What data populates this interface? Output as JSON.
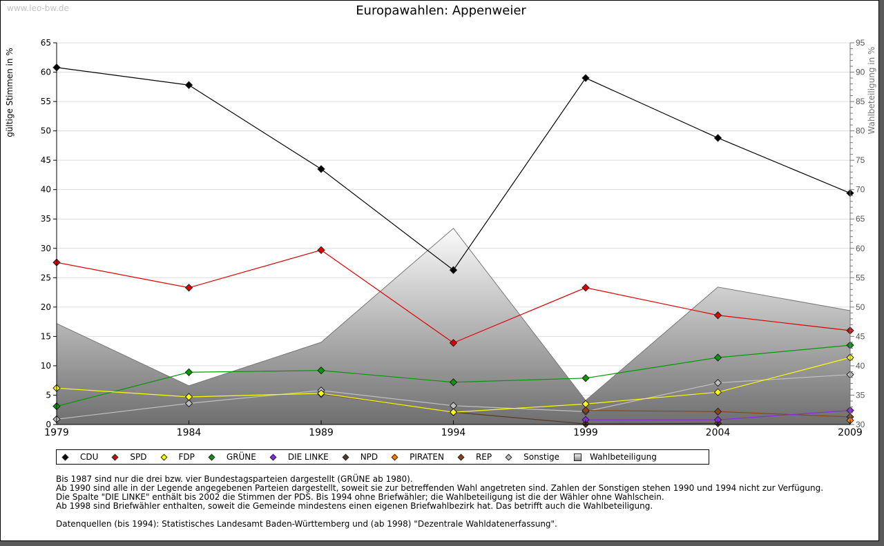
{
  "watermark": "www.leo-bw.de",
  "legend": [
    {
      "label": "CDU",
      "color": "#000000"
    },
    {
      "label": "SPD",
      "color": "#e00000"
    },
    {
      "label": "FDP",
      "color": "#ffff00"
    },
    {
      "label": "GRÜNE",
      "color": "#009900"
    },
    {
      "label": "DIE LINKE",
      "color": "#8a2be2"
    },
    {
      "label": "NPD",
      "color": "#5a3a24"
    },
    {
      "label": "PIRATEN",
      "color": "#ff8000"
    },
    {
      "label": "REP",
      "color": "#8b4513"
    },
    {
      "label": "Sonstige",
      "color": "#c0c0c0"
    },
    {
      "label": "Wahlbeteiligung",
      "color": "#a0a0a0"
    }
  ],
  "notes": [
    "Bis 1987 sind nur die drei bzw. vier Bundestagsparteien dargestellt (GRÜNE ab 1980).",
    "Ab 1990 sind alle in der Legende angegebenen Parteien dargestellt, soweit sie zur betreffenden Wahl angetreten sind. Zahlen der Sonstigen stehen 1990 und 1994 nicht zur Verfügung.",
    "Die Spalte \"DIE LINKE\" enthält bis 2002 die Stimmen der PDS. Bis 1994 ohne Briefwähler; die Wahlbeteiligung ist die der Wähler ohne Wahlschein.",
    "Ab 1998 sind Briefwähler enthalten, soweit die Gemeinde mindestens einen eigenen Briefwahlbezirk hat. Das betrifft auch die Wahlbeteiligung.",
    "Datenquellen (bis 1994): Statistisches Landesamt Baden-Württemberg und (ab 1998) \"Dezentrale Wahldatenerfassung\"."
  ],
  "chart_data": {
    "type": "line",
    "title": "Europawahlen: Appenweier",
    "xlabel": "",
    "ylabel": "gültige Stimmen in %",
    "ylabel_right": "Wahlbeteiligung in %",
    "x": [
      "1979",
      "1984",
      "1989",
      "1994",
      "1999",
      "2004",
      "2009"
    ],
    "ylim": [
      0,
      65
    ],
    "yticks": [
      "0",
      "5",
      "10",
      "15",
      "20",
      "25",
      "30",
      "35",
      "40",
      "45",
      "50",
      "55",
      "60",
      "65"
    ],
    "ylim_right": [
      30,
      95
    ],
    "yticks_right": [
      "30",
      "35",
      "40",
      "45",
      "50",
      "55",
      "60",
      "65",
      "70",
      "75",
      "80",
      "85",
      "90",
      "95"
    ],
    "grid": true,
    "legend_position": "bottom",
    "area": {
      "name": "Wahlbeteiligung",
      "axis": "right",
      "values": [
        47.2,
        36.6,
        44.0,
        63.4,
        34.1,
        53.4,
        49.4
      ]
    },
    "series": [
      {
        "name": "Sonstige",
        "color": "#c0c0c0",
        "values": [
          0.9,
          3.6,
          5.8,
          3.2,
          2.2,
          7.1,
          8.5
        ]
      },
      {
        "name": "NPD",
        "color": "#5a3a24",
        "values": [
          null,
          null,
          5.2,
          2.1,
          0.1,
          0.2,
          null
        ]
      },
      {
        "name": "REP",
        "color": "#8b4513",
        "values": [
          null,
          null,
          null,
          null,
          2.4,
          2.2,
          1.3
        ]
      },
      {
        "name": "PIRATEN",
        "color": "#ff8000",
        "values": [
          null,
          null,
          null,
          null,
          null,
          null,
          0.7
        ]
      },
      {
        "name": "DIE LINKE",
        "color": "#8a2be2",
        "values": [
          null,
          null,
          null,
          null,
          0.8,
          0.8,
          2.4
        ]
      },
      {
        "name": "GRÜNE",
        "color": "#009900",
        "values": [
          3.1,
          8.9,
          9.2,
          7.2,
          7.9,
          11.4,
          13.5
        ]
      },
      {
        "name": "FDP",
        "color": "#ffff00",
        "values": [
          6.2,
          4.7,
          5.3,
          2.1,
          3.5,
          5.5,
          11.4
        ]
      },
      {
        "name": "SPD",
        "color": "#e00000",
        "values": [
          27.6,
          23.3,
          29.7,
          13.9,
          23.3,
          18.6,
          16.0
        ]
      },
      {
        "name": "CDU",
        "color": "#000000",
        "values": [
          60.8,
          57.8,
          43.5,
          26.3,
          59.0,
          48.8,
          39.4
        ]
      }
    ]
  }
}
